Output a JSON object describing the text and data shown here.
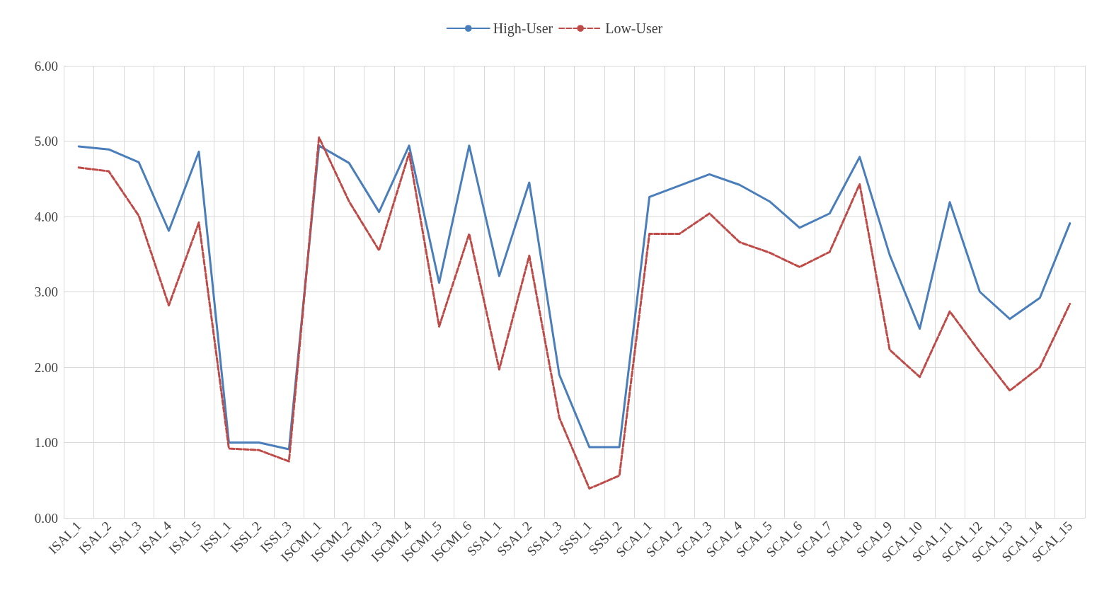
{
  "chart_data": {
    "type": "line",
    "categories": [
      "ISAI_1",
      "ISAI_2",
      "ISAI_3",
      "ISAI_4",
      "ISAI_5",
      "ISSI_1",
      "ISSI_2",
      "ISSI_3",
      "ISCMI_1",
      "ISCMI_2",
      "ISCMI_3",
      "ISCMI_4",
      "ISCMI_5",
      "ISCMI_6",
      "SSAI_1",
      "SSAI_2",
      "SSAI_3",
      "SSSI_1",
      "SSSI_2",
      "SCAI_1",
      "SCAI_2",
      "SCAI_3",
      "SCAI_4",
      "SCAI_5",
      "SCAI_6",
      "SCAI_7",
      "SCAI_8",
      "SCAI_9",
      "SCAI_10",
      "SCAI_11",
      "SCAI_12",
      "SCAI_13",
      "SCAI_14",
      "SCAI_15"
    ],
    "series": [
      {
        "name": "High-User",
        "color": "#4a7ebb",
        "line_style": "solid",
        "values": [
          4.93,
          4.89,
          4.72,
          3.81,
          4.86,
          1.0,
          1.0,
          0.91,
          4.94,
          4.71,
          4.06,
          4.94,
          3.12,
          4.94,
          3.21,
          4.45,
          1.9,
          0.94,
          0.94,
          4.26,
          4.41,
          4.56,
          4.42,
          4.2,
          3.85,
          4.04,
          4.79,
          3.49,
          2.51,
          4.19,
          3.0,
          2.64,
          2.92,
          3.91
        ]
      },
      {
        "name": "Low-User",
        "color": "#be4b48",
        "line_style": "dashed",
        "values": [
          4.65,
          4.6,
          4.01,
          2.82,
          3.92,
          0.92,
          0.9,
          0.75,
          5.05,
          4.2,
          3.55,
          4.84,
          2.54,
          3.77,
          1.97,
          3.48,
          1.33,
          0.39,
          0.56,
          3.77,
          3.77,
          4.04,
          3.66,
          3.52,
          3.33,
          3.53,
          4.43,
          2.23,
          1.87,
          2.74,
          2.2,
          1.69,
          2.0,
          2.84
        ]
      }
    ],
    "ylim": [
      0,
      6
    ],
    "yticks": [
      {
        "value": 0,
        "label": "0.00"
      },
      {
        "value": 1,
        "label": "1.00"
      },
      {
        "value": 2,
        "label": "2.00"
      },
      {
        "value": 3,
        "label": "3.00"
      },
      {
        "value": 4,
        "label": "4.00"
      },
      {
        "value": 5,
        "label": "5.00"
      },
      {
        "value": 6,
        "label": "6.00"
      }
    ],
    "grid": true,
    "legend": "top",
    "marker": "none"
  }
}
